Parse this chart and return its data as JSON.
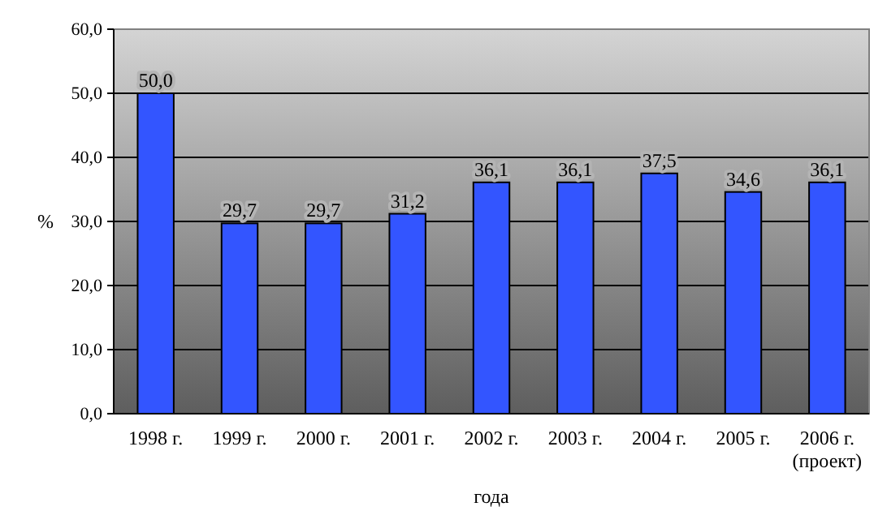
{
  "chart_data": {
    "type": "bar",
    "xlabel": "года",
    "ylabel": "%",
    "categories": [
      "1998 г.",
      "1999 г.",
      "2000 г.",
      "2001 г.",
      "2002 г.",
      "2003 г.",
      "2004 г.",
      "2005 г.",
      "2006 г. (проект)"
    ],
    "values": [
      50.0,
      29.7,
      29.7,
      31.2,
      36.1,
      36.1,
      37.5,
      34.6,
      36.1
    ],
    "value_labels": [
      "50,0",
      "29,7",
      "29,7",
      "31,2",
      "36,1",
      "36,1",
      "37,5",
      "34,6",
      "36,1"
    ],
    "color": "#3355ff",
    "ylim": [
      0,
      60
    ],
    "yticks": [
      {
        "value": 0,
        "label": "0,0"
      },
      {
        "value": 10,
        "label": "10,0"
      },
      {
        "value": 20,
        "label": "20,0"
      },
      {
        "value": 30,
        "label": "30,0"
      },
      {
        "value": 40,
        "label": "40,0"
      },
      {
        "value": 50,
        "label": "50,0"
      },
      {
        "value": 60,
        "label": "60,0"
      }
    ],
    "grid": "y"
  }
}
